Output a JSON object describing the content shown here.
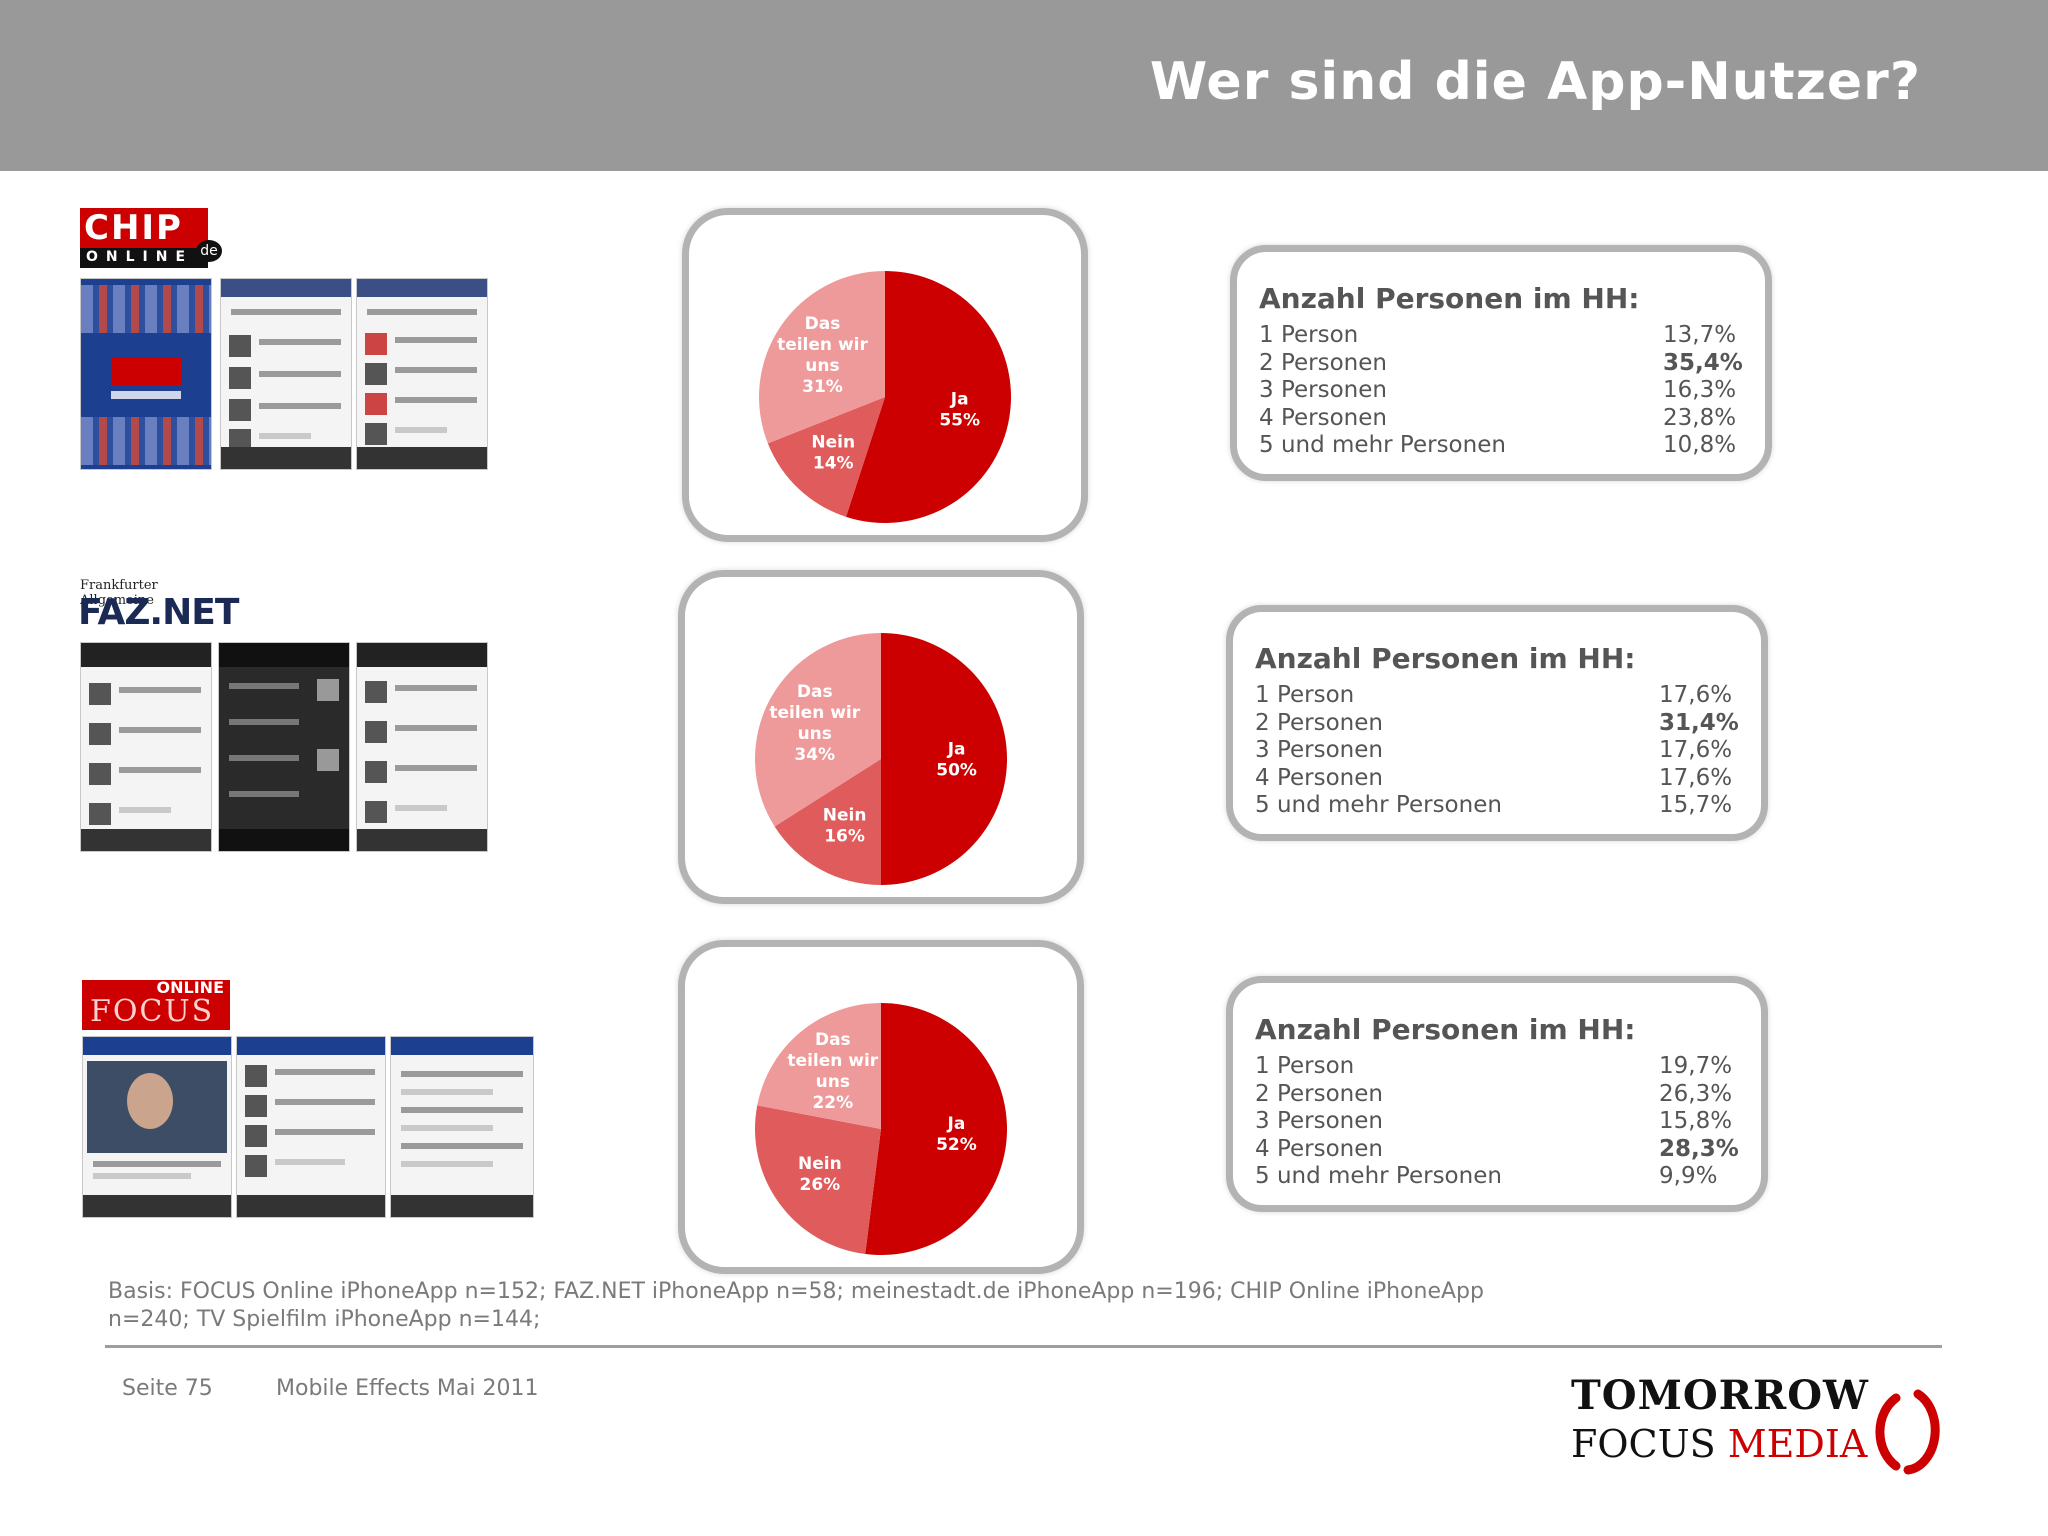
{
  "header": {
    "title": "Wer sind die App-Nutzer?"
  },
  "apps": [
    {
      "logo_text": "CHIP",
      "logo_sub": "ONLINE",
      "logo_badge": "de"
    },
    {
      "logo_small": "Frankfurter Allgemeine",
      "logo_text": "FAZ.NET"
    },
    {
      "logo_sub": "ONLINE",
      "logo_text": "FOCUS"
    }
  ],
  "colors": {
    "ja": "#cc0000",
    "nein": "#e05b5b",
    "teilen": "#ee9a9a",
    "border": "#b3b3b3"
  },
  "chart_data": [
    {
      "type": "pie",
      "slices": [
        {
          "label": "Ja",
          "value": 55,
          "display": "55%"
        },
        {
          "label": "Nein",
          "value": 14,
          "display": "14%"
        },
        {
          "label": "Das teilen wir uns",
          "value": 31,
          "display": "31%"
        }
      ],
      "table": {
        "title": "Anzahl Personen im HH:",
        "rows": [
          {
            "label": "1 Person",
            "value": "13,7%",
            "bold": false
          },
          {
            "label": "2 Personen",
            "value": "35,4%",
            "bold": true
          },
          {
            "label": "3 Personen",
            "value": "16,3%",
            "bold": false
          },
          {
            "label": "4 Personen",
            "value": "23,8%",
            "bold": false
          },
          {
            "label": "5 und mehr Personen",
            "value": "10,8%",
            "bold": false
          }
        ]
      }
    },
    {
      "type": "pie",
      "slices": [
        {
          "label": "Ja",
          "value": 50,
          "display": "50%"
        },
        {
          "label": "Nein",
          "value": 16,
          "display": "16%"
        },
        {
          "label": "Das teilen wir uns",
          "value": 34,
          "display": "34%"
        }
      ],
      "table": {
        "title": "Anzahl Personen im HH:",
        "rows": [
          {
            "label": "1 Person",
            "value": "17,6%",
            "bold": false
          },
          {
            "label": "2 Personen",
            "value": "31,4%",
            "bold": true
          },
          {
            "label": "3 Personen",
            "value": "17,6%",
            "bold": false
          },
          {
            "label": "4 Personen",
            "value": "17,6%",
            "bold": false
          },
          {
            "label": "5 und mehr Personen",
            "value": "15,7%",
            "bold": false
          }
        ]
      }
    },
    {
      "type": "pie",
      "slices": [
        {
          "label": "Ja",
          "value": 52,
          "display": "52%"
        },
        {
          "label": "Nein",
          "value": 26,
          "display": "26%"
        },
        {
          "label": "Das teilen wir uns",
          "value": 22,
          "display": "22%"
        }
      ],
      "table": {
        "title": "Anzahl Personen im HH:",
        "rows": [
          {
            "label": "1 Person",
            "value": "19,7%",
            "bold": false
          },
          {
            "label": "2 Personen",
            "value": "26,3%",
            "bold": false
          },
          {
            "label": "3 Personen",
            "value": "15,8%",
            "bold": false
          },
          {
            "label": "4 Personen",
            "value": "28,3%",
            "bold": true
          },
          {
            "label": "5 und mehr Personen",
            "value": "9,9%",
            "bold": false
          }
        ]
      }
    }
  ],
  "basis": "Basis: FOCUS Online iPhoneApp n=152; FAZ.NET iPhoneApp n=58; meinestadt.de iPhoneApp n=196; CHIP Online iPhoneApp n=240; TV Spielfilm iPhoneApp n=144;",
  "footer": {
    "page": "Seite 75",
    "doc": "Mobile Effects Mai 2011"
  },
  "brand": {
    "line1": "TOMORROW",
    "line2_a": "FOCUS",
    "line2_b": "MEDIA"
  }
}
